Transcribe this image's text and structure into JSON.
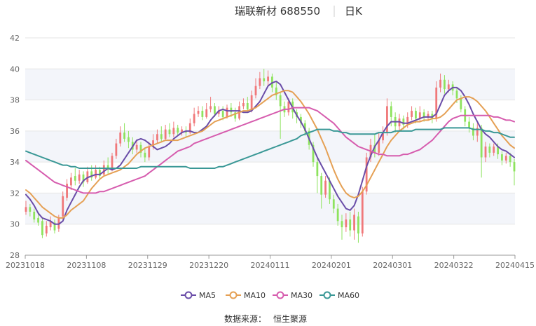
{
  "header": {
    "title": "瑞联新材 688550",
    "period": "日K"
  },
  "source": {
    "label": "数据来源：",
    "value": "恒生聚源"
  },
  "colors": {
    "up": "#f0787a",
    "down": "#8ee35e",
    "ma5": "#6a4da8",
    "ma10": "#e5a054",
    "ma30": "#d65cae",
    "ma60": "#3a9896",
    "band": "#f3f5fa",
    "grid": "#e6e6e6",
    "axis": "#999999"
  },
  "chart_data": {
    "type": "candlestick",
    "title": "瑞联新材 688550 日K",
    "ylim": [
      28,
      42
    ],
    "yticks": [
      28,
      30,
      32,
      34,
      36,
      38,
      40,
      42
    ],
    "xticks": [
      "20231018",
      "20231108",
      "20231129",
      "20231220",
      "20240111",
      "20240201",
      "20240301",
      "20240322",
      "20240415"
    ],
    "legend_position": "bottom",
    "ma_series": [
      {
        "name": "MA5",
        "color": "#6a4da8",
        "values": [
          31.9,
          31.6,
          31.2,
          30.7,
          30.4,
          30.3,
          30.2,
          30.0,
          30.0,
          30.2,
          30.9,
          31.4,
          31.9,
          32.4,
          32.8,
          33.0,
          33.1,
          33.2,
          33.2,
          33.4,
          33.6,
          33.5,
          33.6,
          33.8,
          34.2,
          34.6,
          35.0,
          35.4,
          35.5,
          35.4,
          35.2,
          35.0,
          34.8,
          34.9,
          35.0,
          35.2,
          35.5,
          35.7,
          35.9,
          36.0,
          36.0,
          35.9,
          35.9,
          36.1,
          36.3,
          36.7,
          37.0,
          37.3,
          37.4,
          37.3,
          37.3,
          37.3,
          37.3,
          37.2,
          37.2,
          37.3,
          37.6,
          37.9,
          38.4,
          38.9,
          39.1,
          39.2,
          39.0,
          38.5,
          38.0,
          37.5,
          37.0,
          36.6,
          36.1,
          35.5,
          34.9,
          34.3,
          33.8,
          33.3,
          32.8,
          32.3,
          31.8,
          31.4,
          31.0,
          30.9,
          31.2,
          31.9,
          32.8,
          33.7,
          34.4,
          35.0,
          35.4,
          35.9,
          36.3,
          36.6,
          36.6,
          36.6,
          36.5,
          36.5,
          36.6,
          36.7,
          36.8,
          36.9,
          36.9,
          36.9,
          37.1,
          37.7,
          38.3,
          38.6,
          38.8,
          38.8,
          38.6,
          38.2,
          37.7,
          37.1,
          36.6,
          36.1,
          35.8,
          35.6,
          35.3,
          35.0,
          34.8,
          34.7,
          34.5,
          34.3
        ]
      },
      {
        "name": "MA10",
        "color": "#e5a054",
        "values": [
          32.2,
          32.0,
          31.7,
          31.4,
          31.1,
          30.9,
          30.7,
          30.5,
          30.4,
          30.4,
          30.6,
          30.9,
          31.1,
          31.3,
          31.5,
          31.9,
          32.3,
          32.6,
          32.9,
          33.1,
          33.2,
          33.3,
          33.4,
          33.5,
          33.7,
          33.9,
          34.2,
          34.5,
          34.7,
          34.9,
          35.0,
          35.1,
          35.2,
          35.3,
          35.4,
          35.4,
          35.4,
          35.4,
          35.5,
          35.6,
          35.7,
          35.8,
          35.9,
          36.0,
          36.2,
          36.4,
          36.6,
          36.7,
          36.8,
          36.9,
          37.0,
          37.1,
          37.2,
          37.3,
          37.3,
          37.4,
          37.5,
          37.7,
          37.9,
          38.1,
          38.3,
          38.4,
          38.5,
          38.6,
          38.6,
          38.5,
          38.2,
          37.9,
          37.5,
          37.1,
          36.6,
          36.1,
          35.5,
          34.9,
          34.2,
          33.5,
          32.9,
          32.4,
          32.0,
          31.8,
          31.7,
          31.8,
          32.1,
          32.5,
          33.0,
          33.5,
          34.0,
          34.5,
          35.0,
          35.4,
          35.7,
          36.0,
          36.2,
          36.4,
          36.5,
          36.6,
          36.6,
          36.7,
          36.7,
          36.8,
          36.8,
          36.9,
          37.1,
          37.4,
          37.7,
          38.0,
          38.1,
          38.2,
          38.2,
          38.1,
          37.9,
          37.6,
          37.3,
          36.9,
          36.5,
          36.1,
          35.7,
          35.4,
          35.1,
          34.9
        ]
      },
      {
        "name": "MA30",
        "color": "#d65cae",
        "values": [
          34.1,
          33.9,
          33.7,
          33.5,
          33.3,
          33.1,
          32.9,
          32.7,
          32.6,
          32.5,
          32.4,
          32.3,
          32.2,
          32.1,
          32.0,
          32.0,
          32.0,
          32.0,
          32.1,
          32.1,
          32.2,
          32.3,
          32.4,
          32.5,
          32.6,
          32.7,
          32.8,
          32.9,
          33.0,
          33.1,
          33.3,
          33.5,
          33.7,
          33.9,
          34.1,
          34.3,
          34.5,
          34.7,
          34.8,
          34.9,
          35.0,
          35.2,
          35.3,
          35.4,
          35.5,
          35.6,
          35.7,
          35.8,
          35.9,
          36.0,
          36.1,
          36.2,
          36.3,
          36.4,
          36.5,
          36.6,
          36.7,
          36.8,
          36.9,
          37.0,
          37.1,
          37.2,
          37.3,
          37.4,
          37.4,
          37.5,
          37.5,
          37.5,
          37.5,
          37.5,
          37.4,
          37.3,
          37.1,
          36.9,
          36.7,
          36.5,
          36.2,
          35.9,
          35.6,
          35.4,
          35.2,
          35.0,
          34.9,
          34.8,
          34.7,
          34.6,
          34.5,
          34.5,
          34.4,
          34.4,
          34.4,
          34.4,
          34.5,
          34.5,
          34.6,
          34.7,
          34.8,
          35.0,
          35.2,
          35.4,
          35.7,
          36.0,
          36.3,
          36.6,
          36.8,
          36.9,
          37.0,
          37.0,
          37.0,
          37.0,
          37.0,
          37.0,
          37.0,
          37.0,
          36.9,
          36.9,
          36.8,
          36.7,
          36.7,
          36.6
        ]
      },
      {
        "name": "MA60",
        "color": "#3a9896",
        "values": [
          34.7,
          34.6,
          34.5,
          34.4,
          34.3,
          34.2,
          34.1,
          34.0,
          33.9,
          33.8,
          33.8,
          33.7,
          33.7,
          33.6,
          33.6,
          33.6,
          33.6,
          33.6,
          33.6,
          33.6,
          33.6,
          33.6,
          33.6,
          33.6,
          33.6,
          33.6,
          33.6,
          33.6,
          33.7,
          33.7,
          33.7,
          33.7,
          33.7,
          33.7,
          33.7,
          33.7,
          33.7,
          33.7,
          33.7,
          33.7,
          33.6,
          33.6,
          33.6,
          33.6,
          33.6,
          33.6,
          33.6,
          33.7,
          33.7,
          33.8,
          33.9,
          34.0,
          34.1,
          34.2,
          34.3,
          34.4,
          34.5,
          34.6,
          34.7,
          34.8,
          34.9,
          35.0,
          35.1,
          35.2,
          35.3,
          35.4,
          35.5,
          35.7,
          35.8,
          35.9,
          36.0,
          36.1,
          36.1,
          36.1,
          36.1,
          36.0,
          36.0,
          35.9,
          35.9,
          35.8,
          35.8,
          35.8,
          35.8,
          35.8,
          35.8,
          35.8,
          35.9,
          35.9,
          35.9,
          35.9,
          36.0,
          36.0,
          36.0,
          36.0,
          36.0,
          36.1,
          36.1,
          36.1,
          36.1,
          36.1,
          36.1,
          36.1,
          36.2,
          36.2,
          36.2,
          36.2,
          36.2,
          36.2,
          36.2,
          36.1,
          36.1,
          36.1,
          36.0,
          36.0,
          35.9,
          35.9,
          35.8,
          35.7,
          35.6,
          35.6
        ]
      }
    ],
    "candles": [
      [
        30.8,
        31.1,
        31.5,
        30.6
      ],
      [
        31.1,
        30.8,
        31.3,
        30.5
      ],
      [
        30.8,
        30.3,
        31.0,
        30.1
      ],
      [
        30.4,
        30.1,
        30.8,
        29.9
      ],
      [
        30.2,
        29.3,
        30.4,
        29.1
      ],
      [
        29.4,
        29.9,
        30.2,
        29.2
      ],
      [
        29.8,
        30.2,
        30.5,
        29.6
      ],
      [
        30.1,
        29.6,
        30.3,
        29.4
      ],
      [
        29.7,
        30.4,
        30.6,
        29.5
      ],
      [
        30.5,
        31.8,
        32.1,
        30.3
      ],
      [
        31.7,
        32.6,
        32.9,
        31.5
      ],
      [
        32.5,
        33.0,
        33.3,
        32.2
      ],
      [
        33.1,
        32.8,
        33.6,
        32.5
      ],
      [
        32.8,
        33.2,
        33.5,
        32.6
      ],
      [
        33.2,
        32.7,
        33.4,
        32.4
      ],
      [
        32.7,
        33.4,
        33.7,
        32.6
      ],
      [
        33.4,
        33.0,
        33.8,
        32.8
      ],
      [
        33.0,
        33.5,
        33.8,
        32.9
      ],
      [
        33.5,
        33.1,
        33.7,
        32.9
      ],
      [
        33.2,
        33.8,
        34.1,
        33.1
      ],
      [
        33.8,
        33.5,
        34.3,
        33.2
      ],
      [
        33.5,
        34.4,
        34.6,
        33.4
      ],
      [
        34.4,
        35.2,
        35.5,
        34.2
      ],
      [
        35.2,
        35.9,
        36.3,
        35.0
      ],
      [
        35.9,
        35.5,
        36.5,
        35.3
      ],
      [
        35.6,
        35.3,
        36.0,
        34.9
      ],
      [
        35.3,
        34.8,
        35.6,
        34.5
      ],
      [
        34.8,
        35.1,
        35.4,
        34.6
      ],
      [
        35.1,
        34.6,
        35.3,
        34.3
      ],
      [
        34.6,
        34.3,
        34.9,
        34.0
      ],
      [
        34.3,
        35.0,
        35.3,
        34.1
      ],
      [
        35.0,
        35.4,
        35.8,
        34.8
      ],
      [
        35.4,
        35.8,
        36.1,
        35.2
      ],
      [
        35.8,
        35.5,
        36.3,
        35.3
      ],
      [
        35.5,
        36.1,
        36.4,
        35.4
      ],
      [
        36.1,
        35.8,
        36.5,
        35.6
      ],
      [
        35.8,
        36.2,
        36.6,
        35.6
      ],
      [
        36.2,
        35.9,
        36.4,
        35.7
      ],
      [
        35.9,
        36.1,
        36.3,
        35.7
      ],
      [
        36.0,
        35.9,
        36.3,
        35.6
      ],
      [
        35.9,
        36.5,
        36.8,
        35.8
      ],
      [
        36.5,
        37.1,
        37.5,
        36.3
      ],
      [
        37.1,
        37.3,
        37.6,
        36.9
      ],
      [
        37.3,
        36.9,
        37.6,
        36.7
      ],
      [
        36.9,
        37.4,
        37.8,
        36.8
      ],
      [
        37.4,
        37.6,
        38.2,
        37.2
      ],
      [
        37.6,
        37.1,
        37.8,
        36.9
      ],
      [
        37.1,
        37.3,
        37.6,
        36.9
      ],
      [
        37.3,
        36.9,
        37.6,
        36.7
      ],
      [
        36.9,
        37.5,
        37.7,
        36.8
      ],
      [
        37.5,
        37.2,
        37.8,
        36.9
      ],
      [
        37.2,
        36.8,
        37.5,
        36.6
      ],
      [
        36.8,
        37.6,
        37.9,
        36.7
      ],
      [
        37.6,
        37.8,
        38.1,
        37.4
      ],
      [
        37.8,
        37.4,
        38.2,
        37.2
      ],
      [
        37.4,
        38.3,
        38.6,
        37.2
      ],
      [
        38.3,
        38.9,
        39.4,
        38.1
      ],
      [
        38.9,
        39.4,
        39.8,
        38.7
      ],
      [
        39.4,
        39.2,
        40.0,
        38.9
      ],
      [
        39.2,
        39.5,
        39.9,
        38.9
      ],
      [
        39.5,
        38.8,
        39.7,
        38.5
      ],
      [
        38.8,
        38.3,
        39.2,
        38.0
      ],
      [
        38.3,
        37.6,
        38.5,
        35.5
      ],
      [
        37.6,
        37.2,
        37.9,
        36.9
      ],
      [
        37.2,
        37.9,
        38.1,
        37.0
      ],
      [
        37.9,
        37.2,
        38.1,
        36.8
      ],
      [
        37.2,
        36.9,
        37.4,
        36.5
      ],
      [
        36.9,
        36.5,
        37.1,
        36.2
      ],
      [
        36.5,
        36.0,
        36.7,
        35.7
      ],
      [
        36.0,
        35.1,
        36.2,
        34.8
      ],
      [
        35.1,
        34.0,
        35.3,
        33.7
      ],
      [
        34.0,
        33.1,
        34.3,
        32.0
      ],
      [
        33.1,
        31.9,
        33.3,
        31.0
      ],
      [
        31.9,
        32.8,
        33.1,
        31.7
      ],
      [
        32.8,
        31.6,
        33.0,
        31.3
      ],
      [
        31.6,
        31.0,
        31.9,
        30.7
      ],
      [
        31.0,
        30.2,
        31.3,
        29.9
      ],
      [
        30.2,
        29.8,
        30.6,
        29.0
      ],
      [
        29.8,
        30.3,
        30.7,
        29.5
      ],
      [
        30.3,
        29.6,
        30.8,
        29.2
      ],
      [
        29.6,
        30.6,
        31.0,
        29.0
      ],
      [
        30.5,
        29.4,
        30.8,
        28.8
      ],
      [
        29.4,
        32.1,
        32.4,
        29.2
      ],
      [
        32.1,
        34.3,
        34.6,
        31.9
      ],
      [
        34.3,
        35.1,
        35.5,
        34.0
      ],
      [
        35.1,
        34.6,
        35.8,
        34.3
      ],
      [
        34.6,
        35.4,
        35.9,
        34.4
      ],
      [
        35.4,
        35.9,
        36.3,
        35.2
      ],
      [
        35.9,
        37.6,
        38.1,
        35.7
      ],
      [
        37.6,
        36.9,
        37.9,
        36.3
      ],
      [
        36.9,
        36.3,
        37.2,
        35.9
      ],
      [
        36.3,
        36.8,
        37.1,
        36.0
      ],
      [
        36.8,
        36.4,
        37.0,
        36.1
      ],
      [
        36.4,
        36.9,
        37.2,
        36.2
      ],
      [
        36.9,
        37.3,
        37.6,
        36.7
      ],
      [
        37.3,
        36.8,
        37.5,
        36.5
      ],
      [
        36.8,
        37.2,
        37.6,
        36.6
      ],
      [
        37.2,
        36.9,
        37.4,
        36.6
      ],
      [
        36.9,
        37.1,
        37.3,
        36.7
      ],
      [
        37.1,
        36.8,
        37.3,
        36.5
      ],
      [
        36.8,
        38.8,
        39.2,
        36.6
      ],
      [
        38.8,
        39.3,
        39.7,
        38.5
      ],
      [
        39.3,
        38.7,
        39.6,
        38.4
      ],
      [
        38.7,
        39.0,
        39.3,
        38.5
      ],
      [
        39.0,
        38.6,
        39.2,
        38.3
      ],
      [
        38.6,
        38.1,
        38.8,
        37.8
      ],
      [
        38.1,
        37.4,
        38.3,
        37.2
      ],
      [
        37.4,
        36.6,
        37.6,
        36.3
      ],
      [
        36.6,
        36.2,
        36.9,
        35.9
      ],
      [
        36.2,
        35.7,
        36.5,
        35.4
      ],
      [
        35.7,
        36.2,
        36.5,
        35.3
      ],
      [
        36.2,
        34.3,
        36.4,
        33.0
      ],
      [
        34.3,
        35.0,
        35.3,
        34.0
      ],
      [
        35.0,
        34.6,
        35.2,
        34.3
      ],
      [
        34.6,
        35.0,
        35.2,
        34.4
      ],
      [
        35.0,
        34.5,
        35.2,
        34.2
      ],
      [
        34.5,
        34.1,
        34.7,
        33.8
      ],
      [
        34.1,
        34.4,
        34.6,
        33.9
      ],
      [
        34.4,
        34.0,
        34.6,
        33.7
      ],
      [
        34.0,
        33.4,
        34.2,
        32.5
      ]
    ]
  },
  "legend": [
    {
      "label": "MA5",
      "color": "#6a4da8"
    },
    {
      "label": "MA10",
      "color": "#e5a054"
    },
    {
      "label": "MA30",
      "color": "#d65cae"
    },
    {
      "label": "MA60",
      "color": "#3a9896"
    }
  ]
}
